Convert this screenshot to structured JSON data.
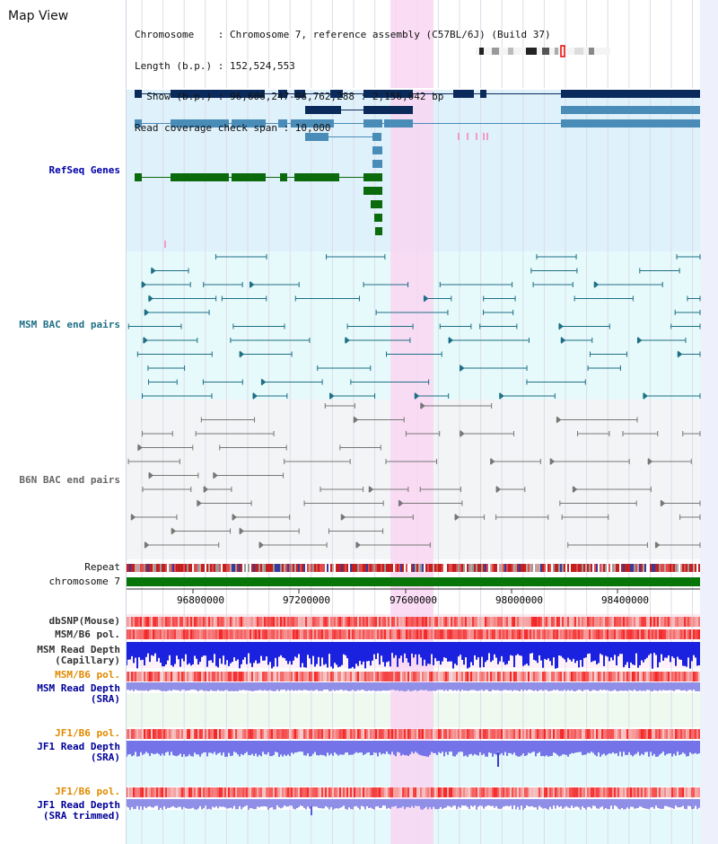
{
  "header": {
    "title": "Map View",
    "info_lines": [
      "Chromosome    : Chromosome 7, reference assembly (C57BL/6J) (Build 37)",
      "Length (b.p.) : 152,524,553",
      "  Show (b.p.) : 96,606,247-98,762,288 : 2,156,042 bp",
      "Read coverage check span : 10,000"
    ]
  },
  "tracks": {
    "refseq": "RefSeq Genes",
    "msm_bac": "MSM BAC end pairs",
    "b6n_bac": "B6N BAC end pairs",
    "repeat": "Repeat",
    "chromosome": "chromosome 7",
    "dbsnp": "dbSNP(Mouse)",
    "msm_pol": "MSM/B6 pol.",
    "msm_depth_cap": "MSM Read Depth\n(Capillary)",
    "msm_pol2": "MSM/B6 pol.",
    "msm_depth_sra": "MSM Read Depth\n(SRA)",
    "jf1_pol": "JF1/B6 pol.",
    "jf1_depth_sra": "JF1 Read Depth\n(SRA)",
    "jf1_pol2": "JF1/B6 pol.",
    "jf1_depth_trim": "JF1 Read Depth\n(SRA trimmed)"
  },
  "axis": {
    "ticks": [
      "96800000",
      "97200000",
      "97600000",
      "98000000",
      "98400000"
    ]
  },
  "colors": {
    "refseq_label": "#0000aa",
    "msm_label": "#1f6f86",
    "b6n_label": "#666666",
    "pol_orange": "#e08a00",
    "depth_blue": "#000099",
    "highlight": "#f9d6f2",
    "gene_navy": "#0b2a5c",
    "gene_steel": "#4a8cb8",
    "gene_green": "#0b6a0b",
    "chromosome_green": "#087508"
  }
}
